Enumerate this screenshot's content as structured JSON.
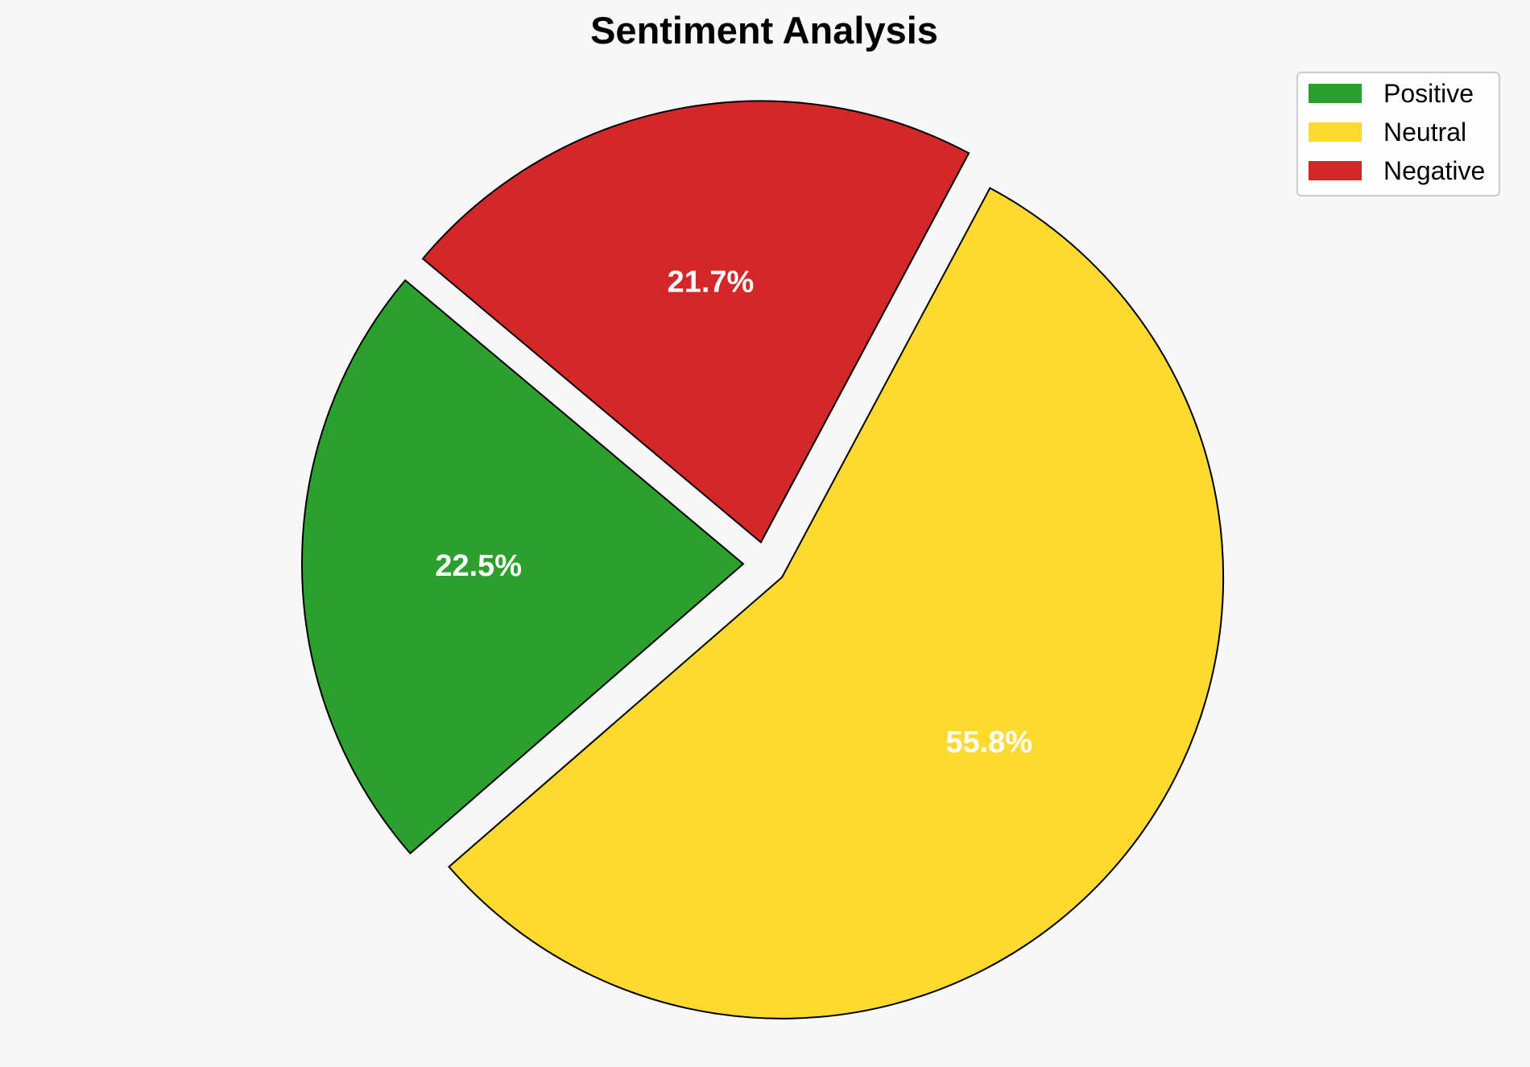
{
  "chart_data": {
    "type": "pie",
    "title": "Sentiment Analysis",
    "categories": [
      "Positive",
      "Neutral",
      "Negative"
    ],
    "values": [
      22.5,
      55.8,
      21.7
    ],
    "value_labels": [
      "22.5%",
      "55.8%",
      "21.7%"
    ],
    "colors": [
      "#2ca02c",
      "#fed930",
      "#d62728"
    ],
    "exploded": true,
    "legend": {
      "position": "top-right",
      "entries": [
        "Positive",
        "Neutral",
        "Negative"
      ]
    }
  }
}
